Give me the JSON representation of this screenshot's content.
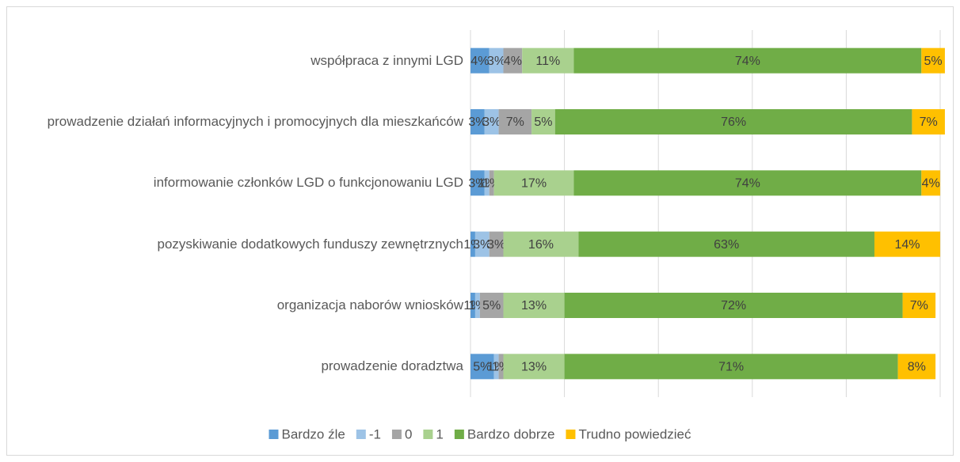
{
  "chart_data": {
    "type": "stacked_barh",
    "categories": [
      "współpraca z innymi LGD",
      "prowadzenie działań informacyjnych i promocyjnych dla mieszkańców",
      "informowanie członków LGD o funkcjonowaniu LGD",
      "pozyskiwanie dodatkowych funduszy zewnętrznych",
      "organizacja naborów wniosków",
      "prowadzenie doradztwa"
    ],
    "series": [
      {
        "name": "Bardzo źle",
        "color": "#5b9bd5",
        "values": [
          4,
          3,
          3,
          1,
          1,
          5
        ],
        "value_labels": [
          "4%",
          "3%",
          "3%",
          "1%",
          "1%",
          "5%"
        ]
      },
      {
        "name": "-1",
        "color": "#9dc3e6",
        "values": [
          3,
          3,
          1,
          3,
          1,
          1
        ],
        "value_labels": [
          "3%",
          "3%",
          "1%",
          "3%",
          "1%",
          "1%"
        ]
      },
      {
        "name": "0",
        "color": "#a5a5a5",
        "values": [
          4,
          7,
          1,
          3,
          5,
          1
        ],
        "value_labels": [
          "4%",
          "7%",
          "1%",
          "3%",
          "5%",
          "1%"
        ]
      },
      {
        "name": "1",
        "color": "#a9d18e",
        "values": [
          11,
          5,
          17,
          16,
          13,
          13
        ],
        "value_labels": [
          "11%",
          "5%",
          "17%",
          "16%",
          "13%",
          "13%"
        ]
      },
      {
        "name": "Bardzo dobrze",
        "color": "#70ad47",
        "values": [
          74,
          76,
          74,
          63,
          72,
          71
        ],
        "value_labels": [
          "74%",
          "76%",
          "74%",
          "63%",
          "72%",
          "71%"
        ]
      },
      {
        "name": "Trudno powiedzieć",
        "color": "#ffc000",
        "values": [
          5,
          7,
          4,
          14,
          7,
          8
        ],
        "value_labels": [
          "5%",
          "7%",
          "4%",
          "14%",
          "7%",
          "8%"
        ]
      }
    ],
    "xlim": [
      0,
      100
    ],
    "xticks": [
      0,
      20,
      40,
      60,
      80,
      100
    ],
    "grid": true,
    "legend": "bottom"
  }
}
